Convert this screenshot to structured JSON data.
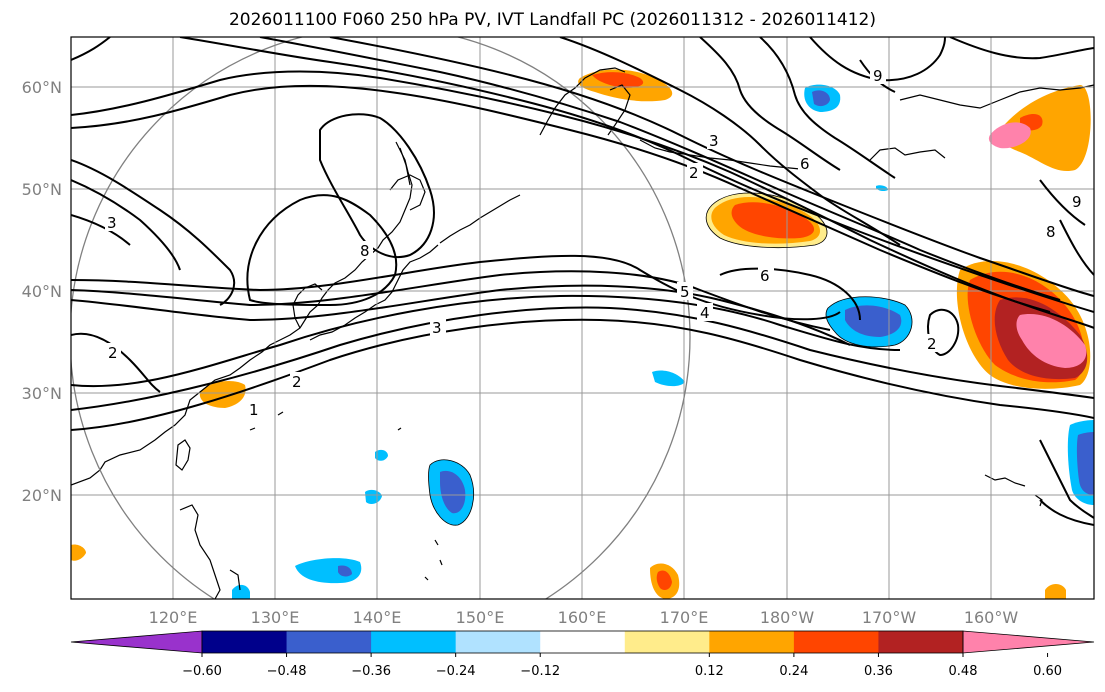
{
  "title": "2026011100 F060 250 hPa PV, IVT Landfall PC (2026011312 - 2026011412)",
  "lat_ticks": [
    "60°N",
    "50°N",
    "40°N",
    "30°N",
    "20°N"
  ],
  "lon_ticks": [
    "120°E",
    "130°E",
    "140°E",
    "150°E",
    "160°E",
    "170°E",
    "180°W",
    "170°W",
    "160°W"
  ],
  "colorbar": {
    "ticks": [
      "−0.60",
      "−0.48",
      "−0.36",
      "−0.24",
      "−0.12",
      "0.12",
      "0.24",
      "0.36",
      "0.48",
      "0.60"
    ],
    "colors": [
      "#9932cc",
      "#00008b",
      "#3a5fcd",
      "#00bfff",
      "#b0e2ff",
      "#ffffff",
      "#ffec8b",
      "#ffa500",
      "#ff4500",
      "#b22222",
      "#ff82ab"
    ]
  },
  "contour_labels": [
    {
      "text": "1"
    },
    {
      "text": "2"
    },
    {
      "text": "2"
    },
    {
      "text": "3"
    },
    {
      "text": "3"
    },
    {
      "text": "4"
    },
    {
      "text": "5"
    },
    {
      "text": "6"
    },
    {
      "text": "8"
    },
    {
      "text": "9"
    },
    {
      "text": "3"
    },
    {
      "text": "2"
    },
    {
      "text": "6"
    },
    {
      "text": "8"
    },
    {
      "text": "9"
    },
    {
      "text": "2"
    }
  ]
}
